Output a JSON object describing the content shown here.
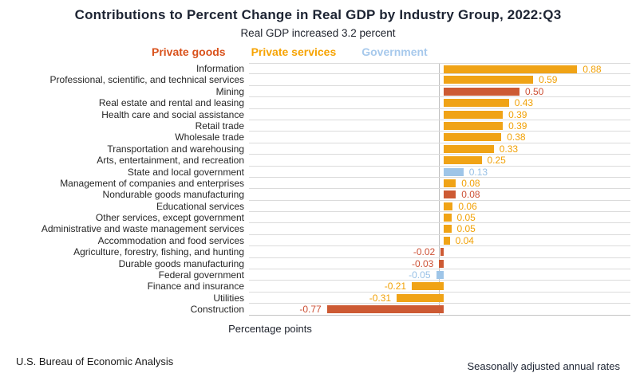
{
  "colors": {
    "goods": {
      "bar": "#cd5a33",
      "text": "#cd5136",
      "legend": "#d9521c"
    },
    "services": {
      "bar": "#f0a316",
      "text": "#f1a106",
      "legend": "#f6a302"
    },
    "government": {
      "bar": "#9ec5e8",
      "text": "#97c0e6",
      "legend": "#a7c9ec"
    }
  },
  "chart_data": {
    "type": "bar",
    "orientation": "horizontal",
    "title": "Contributions to Percent Change in Real GDP by Industry Group, 2022:Q3",
    "subtitle": "Real GDP increased 3.2 percent",
    "xlabel": "Percentage points",
    "xlim": [
      -1.28,
      1.23
    ],
    "grid": "horizontal row separators, vertical zero line",
    "legend_position": "top",
    "legend": [
      {
        "label": "Private goods",
        "group": "goods"
      },
      {
        "label": "Private services",
        "group": "services"
      },
      {
        "label": "Government",
        "group": "government"
      }
    ],
    "categories": [
      "Information",
      "Professional, scientific, and technical services",
      "Mining",
      "Real estate and rental and leasing",
      "Health care and social assistance",
      "Retail trade",
      "Wholesale trade",
      "Transportation and warehousing",
      "Arts, entertainment, and recreation",
      "State and local government",
      "Management of companies and enterprises",
      "Nondurable goods manufacturing",
      "Educational services",
      "Other services, except government",
      "Administrative and waste management services",
      "Accommodation and food services",
      "Agriculture, forestry, fishing, and hunting",
      "Durable goods manufacturing",
      "Federal government",
      "Finance and insurance",
      "Utilities",
      "Construction"
    ],
    "values": [
      0.88,
      0.59,
      0.5,
      0.43,
      0.39,
      0.39,
      0.38,
      0.33,
      0.25,
      0.13,
      0.08,
      0.08,
      0.06,
      0.05,
      0.05,
      0.04,
      -0.02,
      -0.03,
      -0.05,
      -0.21,
      -0.31,
      -0.77
    ],
    "groups": [
      "services",
      "services",
      "goods",
      "services",
      "services",
      "services",
      "services",
      "services",
      "services",
      "government",
      "services",
      "goods",
      "services",
      "services",
      "services",
      "services",
      "goods",
      "goods",
      "government",
      "services",
      "services",
      "goods"
    ]
  },
  "footer": {
    "left": "U.S. Bureau of Economic Analysis",
    "right": "Seasonally adjusted annual rates"
  }
}
